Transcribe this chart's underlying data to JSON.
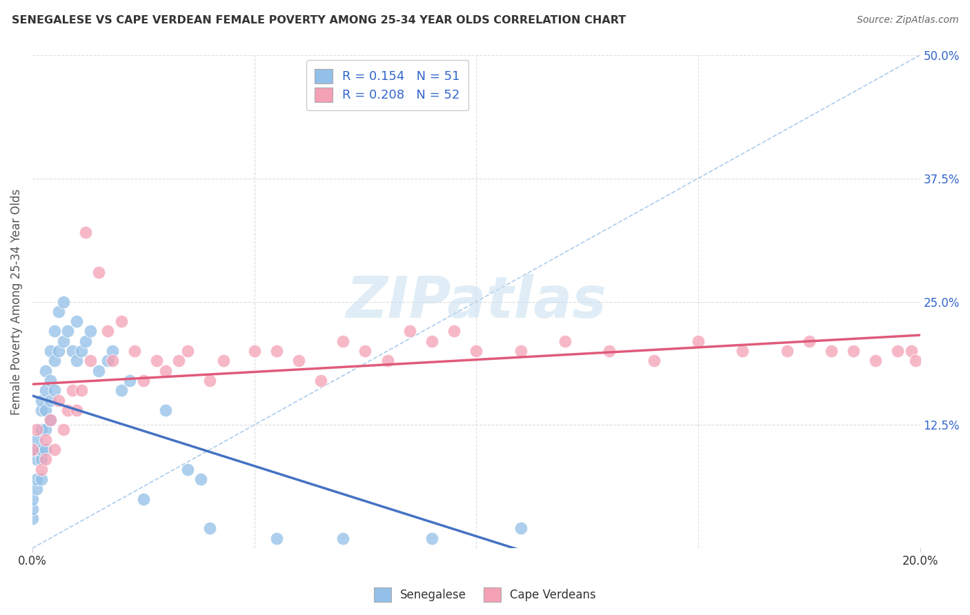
{
  "title": "SENEGALESE VS CAPE VERDEAN FEMALE POVERTY AMONG 25-34 YEAR OLDS CORRELATION CHART",
  "source": "Source: ZipAtlas.com",
  "ylabel": "Female Poverty Among 25-34 Year Olds",
  "xlim": [
    0,
    0.2
  ],
  "ylim": [
    0,
    0.5
  ],
  "yticks_right": [
    0,
    0.125,
    0.25,
    0.375,
    0.5
  ],
  "ytick_labels_right": [
    "",
    "12.5%",
    "25.0%",
    "37.5%",
    "50.0%"
  ],
  "R_blue": 0.154,
  "N_blue": 51,
  "R_pink": 0.208,
  "N_pink": 52,
  "blue_color": "#92C0E8",
  "pink_color": "#F4A0B5",
  "trendline_blue": "#4472C4",
  "trendline_pink": "#E05A7A",
  "reference_line_color": "#BBBBBB",
  "background_color": "#FFFFFF",
  "grid_color": "#DDDDDD",
  "senegalese_x": [
    0.0,
    0.0,
    0.0,
    0.001,
    0.001,
    0.001,
    0.001,
    0.001,
    0.002,
    0.002,
    0.002,
    0.002,
    0.002,
    0.002,
    0.003,
    0.003,
    0.003,
    0.003,
    0.003,
    0.004,
    0.004,
    0.004,
    0.004,
    0.005,
    0.005,
    0.005,
    0.006,
    0.006,
    0.007,
    0.007,
    0.008,
    0.009,
    0.01,
    0.01,
    0.011,
    0.012,
    0.013,
    0.015,
    0.017,
    0.018,
    0.02,
    0.022,
    0.025,
    0.03,
    0.035,
    0.038,
    0.04,
    0.055,
    0.07,
    0.09,
    0.11
  ],
  "senegalese_y": [
    0.03,
    0.04,
    0.05,
    0.06,
    0.07,
    0.09,
    0.1,
    0.11,
    0.07,
    0.09,
    0.1,
    0.12,
    0.14,
    0.15,
    0.1,
    0.12,
    0.14,
    0.16,
    0.18,
    0.13,
    0.15,
    0.17,
    0.2,
    0.16,
    0.19,
    0.22,
    0.2,
    0.24,
    0.21,
    0.25,
    0.22,
    0.2,
    0.19,
    0.23,
    0.2,
    0.21,
    0.22,
    0.18,
    0.19,
    0.2,
    0.16,
    0.17,
    0.05,
    0.14,
    0.08,
    0.07,
    0.02,
    0.01,
    0.01,
    0.01,
    0.02
  ],
  "capeverdean_x": [
    0.0,
    0.001,
    0.002,
    0.003,
    0.003,
    0.004,
    0.005,
    0.006,
    0.007,
    0.008,
    0.009,
    0.01,
    0.011,
    0.012,
    0.013,
    0.015,
    0.017,
    0.018,
    0.02,
    0.023,
    0.025,
    0.028,
    0.03,
    0.033,
    0.035,
    0.04,
    0.043,
    0.05,
    0.055,
    0.06,
    0.065,
    0.07,
    0.075,
    0.08,
    0.085,
    0.09,
    0.095,
    0.1,
    0.11,
    0.12,
    0.13,
    0.14,
    0.15,
    0.16,
    0.17,
    0.175,
    0.18,
    0.185,
    0.19,
    0.195,
    0.198,
    0.199
  ],
  "capeverdean_y": [
    0.1,
    0.12,
    0.08,
    0.09,
    0.11,
    0.13,
    0.1,
    0.15,
    0.12,
    0.14,
    0.16,
    0.14,
    0.16,
    0.32,
    0.19,
    0.28,
    0.22,
    0.19,
    0.23,
    0.2,
    0.17,
    0.19,
    0.18,
    0.19,
    0.2,
    0.17,
    0.19,
    0.2,
    0.2,
    0.19,
    0.17,
    0.21,
    0.2,
    0.19,
    0.22,
    0.21,
    0.22,
    0.2,
    0.2,
    0.21,
    0.2,
    0.19,
    0.21,
    0.2,
    0.2,
    0.21,
    0.2,
    0.2,
    0.19,
    0.2,
    0.2,
    0.19
  ]
}
